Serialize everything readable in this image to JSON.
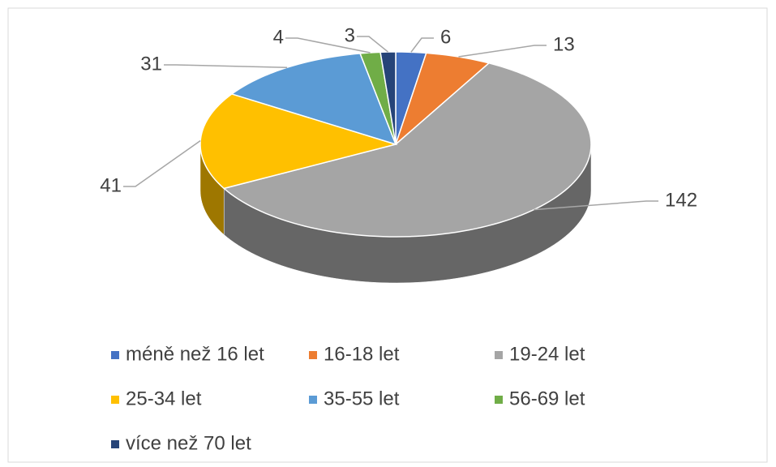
{
  "chart_data": {
    "type": "pie",
    "categories": [
      "méně než 16 let",
      "16-18 let",
      "19-24 let",
      "25-34 let",
      "35-55 let",
      "56-69 let",
      "více než 70 let"
    ],
    "values": [
      6,
      13,
      142,
      41,
      31,
      4,
      3
    ],
    "colors": [
      "#4472c4",
      "#ed7d31",
      "#a5a5a5",
      "#ffc000",
      "#5b9bd5",
      "#70ad47",
      "#264478"
    ],
    "legend": "bottom"
  }
}
